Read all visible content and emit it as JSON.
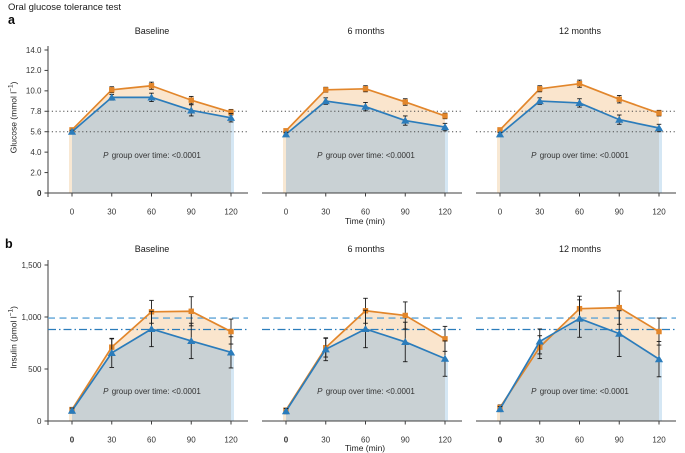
{
  "figure": {
    "title": "Oral glucose tolerance test",
    "panel_labels": {
      "a": "a",
      "b": "b"
    },
    "note": {
      "italic": "P",
      "rest": " group over time: <0.0001"
    }
  },
  "colors": {
    "background": "#ffffff",
    "axis": "#3f3f3f",
    "tick_label": "#333333",
    "orange_line": "#E2862B",
    "blue_line": "#2B7CBB",
    "orange_fill": "#FAE5CD",
    "blue_gray_fill": "#C9D1D4",
    "edge_left_strip": "#F8E8D3",
    "edge_right_strip": "#D5E7F4",
    "error_bar": "#1a1a1a",
    "dotted_ref": "#4D4D4D",
    "dashed_ref": "#5EA3D6",
    "dashdot_ref": "#2B7CBB"
  },
  "chart_data": [
    {
      "id": "a",
      "type": "line",
      "ylabel": {
        "pre": "Glucose (mmol l",
        "sup": "−1",
        "post": ")"
      },
      "xlabel": "Time (min)",
      "x": [
        0,
        30,
        60,
        90,
        120
      ],
      "xtick_labels": [
        "0",
        "30",
        "60",
        "90",
        "120"
      ],
      "yticks": [
        0,
        2.0,
        4.0,
        5.6,
        7.8,
        10.0,
        12.0,
        14.0
      ],
      "ytick_labels": [
        "0",
        "2.0",
        "4.0",
        "5.6",
        "7.8",
        "10.0",
        "12.0",
        "14.0"
      ],
      "ylim": [
        0,
        14.0
      ],
      "bold_zero": {
        "x": false,
        "y": true
      },
      "grid": false,
      "legend": "none",
      "ref_lines": [
        {
          "value": 7.8,
          "style": "dotted",
          "color": "#4D4D4D"
        },
        {
          "value": 5.6,
          "style": "dotted",
          "color": "#4D4D4D"
        }
      ],
      "panels": [
        {
          "title": "Baseline",
          "series": [
            {
              "name": "orange-squares",
              "marker": "square",
              "color": "#E2862B",
              "fill": "#FAE5CD",
              "values": [
                5.8,
                10.1,
                10.5,
                9.0,
                7.7
              ],
              "errors": [
                0.1,
                0.3,
                0.35,
                0.4,
                0.3
              ]
            },
            {
              "name": "blue-triangles",
              "marker": "triangle",
              "color": "#2B7CBB",
              "fill": "#C9D1D4",
              "values": [
                5.6,
                9.3,
                9.3,
                7.9,
                7.1
              ],
              "errors": [
                0.15,
                0.3,
                0.45,
                0.6,
                0.45
              ]
            }
          ]
        },
        {
          "title": "6 months",
          "series": [
            {
              "name": "orange-squares",
              "marker": "square",
              "color": "#E2862B",
              "fill": "#FAE5CD",
              "values": [
                5.7,
                10.1,
                10.2,
                8.8,
                7.3
              ],
              "errors": [
                0.1,
                0.25,
                0.3,
                0.35,
                0.3
              ]
            },
            {
              "name": "blue-triangles",
              "marker": "triangle",
              "color": "#2B7CBB",
              "fill": "#C9D1D4",
              "values": [
                5.4,
                8.9,
                8.3,
                6.8,
                6.1
              ],
              "errors": [
                0.15,
                0.35,
                0.45,
                0.5,
                0.4
              ]
            }
          ]
        },
        {
          "title": "12 months",
          "series": [
            {
              "name": "orange-squares",
              "marker": "square",
              "color": "#E2862B",
              "fill": "#FAE5CD",
              "values": [
                5.8,
                10.2,
                10.7,
                9.1,
                7.6
              ],
              "errors": [
                0.1,
                0.3,
                0.35,
                0.4,
                0.3
              ]
            },
            {
              "name": "blue-triangles",
              "marker": "triangle",
              "color": "#2B7CBB",
              "fill": "#C9D1D4",
              "values": [
                5.4,
                8.9,
                8.7,
                6.9,
                6.0
              ],
              "errors": [
                0.15,
                0.35,
                0.45,
                0.5,
                0.4
              ]
            }
          ]
        }
      ]
    },
    {
      "id": "b",
      "type": "line",
      "ylabel": {
        "pre": "Insulin (pmol l",
        "sup": "−1",
        "post": ")"
      },
      "xlabel": "Time (min)",
      "x": [
        0,
        30,
        60,
        90,
        120
      ],
      "xtick_labels": [
        "0",
        "30",
        "60",
        "90",
        "120"
      ],
      "yticks": [
        0,
        500,
        1000,
        1500
      ],
      "ytick_labels": [
        "0",
        "500",
        "1,000",
        "1,500"
      ],
      "ylim": [
        0,
        1500
      ],
      "bold_zero": {
        "x": true,
        "y": false
      },
      "grid": false,
      "legend": "none",
      "ref_lines": [
        {
          "value": 990,
          "style": "dashed",
          "color": "#5EA3D6"
        },
        {
          "value": 880,
          "style": "dashdot",
          "color": "#2B7CBB"
        }
      ],
      "panels": [
        {
          "title": "Baseline",
          "series": [
            {
              "name": "orange-squares",
              "marker": "square",
              "color": "#E2862B",
              "fill": "#FAE5CD",
              "values": [
                110,
                710,
                1050,
                1055,
                860
              ],
              "errors": [
                20,
                80,
                110,
                140,
                120
              ]
            },
            {
              "name": "blue-triangles",
              "marker": "triangle",
              "color": "#2B7CBB",
              "fill": "#C9D1D4",
              "values": [
                100,
                655,
                885,
                770,
                660
              ],
              "errors": [
                25,
                140,
                170,
                170,
                150
              ]
            }
          ]
        },
        {
          "title": "6 months",
          "series": [
            {
              "name": "orange-squares",
              "marker": "square",
              "color": "#E2862B",
              "fill": "#FAE5CD",
              "values": [
                105,
                705,
                1060,
                1015,
                790
              ],
              "errors": [
                20,
                90,
                120,
                130,
                120
              ]
            },
            {
              "name": "blue-triangles",
              "marker": "triangle",
              "color": "#2B7CBB",
              "fill": "#C9D1D4",
              "values": [
                95,
                690,
                885,
                760,
                600
              ],
              "errors": [
                25,
                110,
                180,
                190,
                170
              ]
            }
          ]
        },
        {
          "title": "12 months",
          "series": [
            {
              "name": "orange-squares",
              "marker": "square",
              "color": "#E2862B",
              "fill": "#FAE5CD",
              "values": [
                130,
                710,
                1080,
                1090,
                860
              ],
              "errors": [
                25,
                110,
                120,
                160,
                130
              ]
            },
            {
              "name": "blue-triangles",
              "marker": "triangle",
              "color": "#2B7CBB",
              "fill": "#C9D1D4",
              "values": [
                115,
                765,
                985,
                840,
                595
              ],
              "errors": [
                25,
                120,
                180,
                220,
                170
              ]
            }
          ]
        }
      ]
    }
  ]
}
